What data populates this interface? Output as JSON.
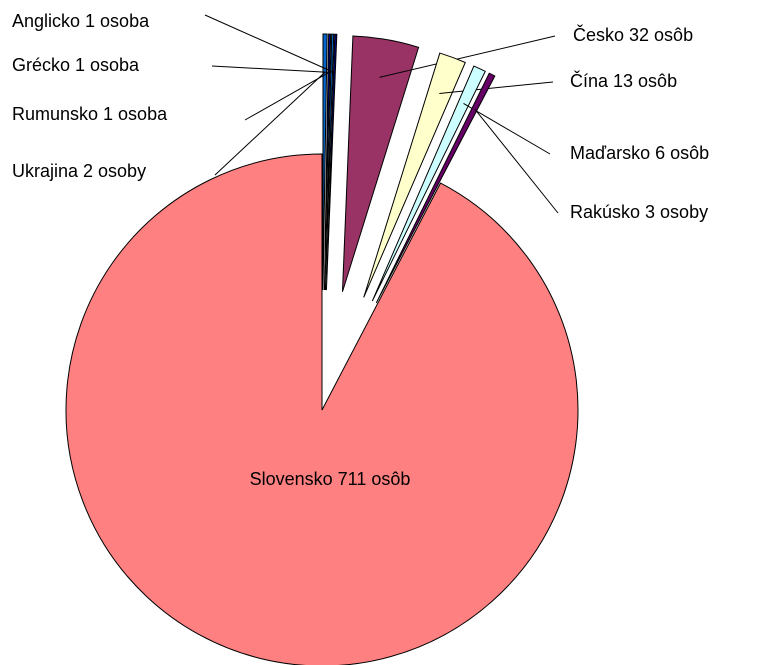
{
  "chart_data": {
    "type": "pie",
    "values": [
      711,
      2,
      1,
      1,
      1,
      32,
      13,
      6,
      3
    ],
    "value_labels": [
      "Slovensko 711 osôb",
      "Ukrajina 2 osoby",
      "Rumunsko 1 osoba",
      "Grécko 1 osoba",
      "Anglicko 1 osoba",
      "Česko 32 osôb",
      "Čína 13 osôb",
      "Maďarsko 6 osôb",
      "Rakúsko 3 osoby"
    ],
    "colors": [
      "#FF8080",
      "#0066CC",
      "#000080",
      "#0066CC",
      "#000080",
      "#993366",
      "#FFFFCC",
      "#CCFFFF",
      "#660066"
    ]
  }
}
